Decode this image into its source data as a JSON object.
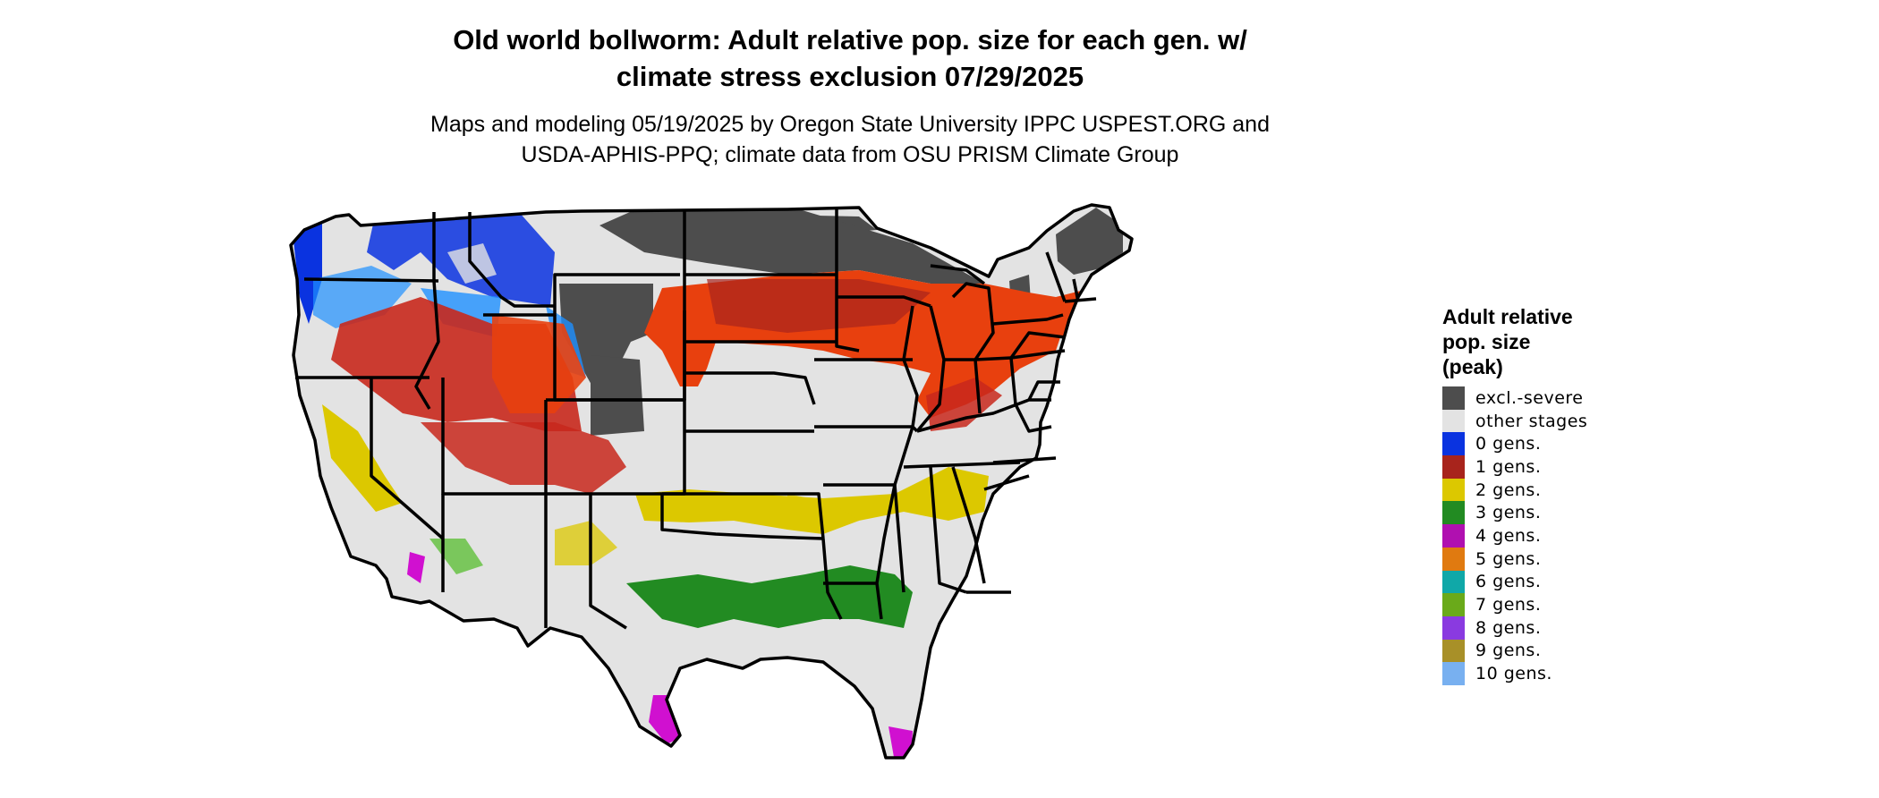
{
  "header": {
    "title": "Old world bollworm: Adult relative pop. size for each gen. w/\nclimate stress exclusion 07/29/2025",
    "subtitle": "Maps and modeling 05/19/2025 by Oregon State University IPPC USPEST.ORG and\nUSDA-APHIS-PPQ; climate data from OSU PRISM Climate Group"
  },
  "legend": {
    "title": "Adult relative\npop. size\n(peak)",
    "items": [
      {
        "label": "excl.-severe",
        "color": "#4d4d4d"
      },
      {
        "label": "other stages",
        "color": "#e3e3e3"
      },
      {
        "label": "0 gens.",
        "color": "#0a33e0"
      },
      {
        "label": "1 gens.",
        "color": "#a8241c"
      },
      {
        "label": "2 gens.",
        "color": "#dcc800"
      },
      {
        "label": "3 gens.",
        "color": "#228b22"
      },
      {
        "label": "4 gens.",
        "color": "#b010b0"
      },
      {
        "label": "5 gens.",
        "color": "#e07a10"
      },
      {
        "label": "6 gens.",
        "color": "#10a8a8"
      },
      {
        "label": "7 gens.",
        "color": "#6aaa1a"
      },
      {
        "label": "8 gens.",
        "color": "#8a3ae0"
      },
      {
        "label": "9 gens.",
        "color": "#a89028"
      },
      {
        "label": "10 gens.",
        "color": "#78b0f0"
      }
    ]
  },
  "map": {
    "colors": {
      "excluded": "#4d4d4d",
      "other": "#e3e3e3",
      "blue": "#0a33e0",
      "light_blue": "#1e90ff",
      "red": "#c8281c",
      "orange_red": "#e8400e",
      "yellow": "#dcc800",
      "green": "#228b22",
      "light_green": "#5fbf3a",
      "magenta": "#d010d0",
      "border": "#000000"
    }
  }
}
